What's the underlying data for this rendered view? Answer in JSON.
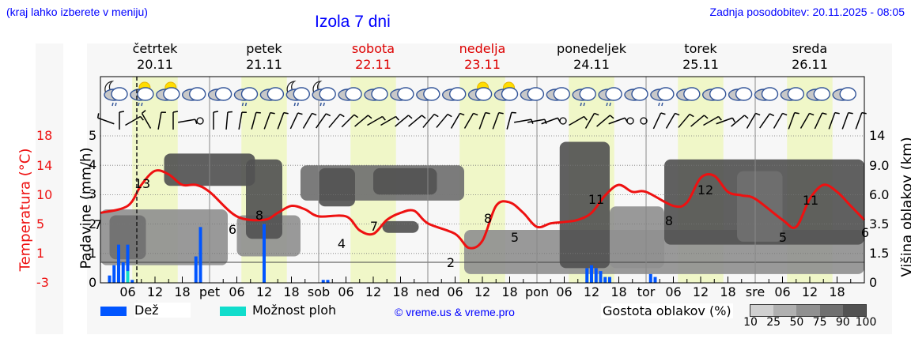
{
  "header": {
    "hint": "(kraj lahko izberete v meniju)",
    "title": "Izola 7 dni",
    "updated": "Zadnja posodobitev: 20.11.2025 - 08:05"
  },
  "days": [
    {
      "name": "četrtek",
      "date": "20.11",
      "weekend": false
    },
    {
      "name": "petek",
      "date": "21.11",
      "weekend": false
    },
    {
      "name": "sobota",
      "date": "22.11",
      "weekend": true
    },
    {
      "name": "nedelja",
      "date": "23.11",
      "weekend": true
    },
    {
      "name": "ponedeljek",
      "date": "24.11",
      "weekend": false
    },
    {
      "name": "torek",
      "date": "25.11",
      "weekend": false
    },
    {
      "name": "sreda",
      "date": "26.11",
      "weekend": false
    }
  ],
  "axes": {
    "temp_label": "Temperatura (°C)",
    "precip_label": "Padavine (mm/h)",
    "cloud_label": "Višina oblakov (km)",
    "temp_ticks": [
      "18",
      "14",
      "10",
      "5",
      "1",
      "-3"
    ],
    "precip_ticks": [
      "5",
      "4",
      "3",
      "2",
      "1",
      "0"
    ],
    "cloud_ticks": [
      "14",
      "9.0",
      "6.0",
      "3.5",
      "1.5",
      "0"
    ],
    "x_ticks": [
      "06",
      "12",
      "18",
      "pet",
      "06",
      "12",
      "18",
      "sob",
      "06",
      "12",
      "18",
      "ned",
      "06",
      "12",
      "18",
      "pon",
      "06",
      "12",
      "18",
      "tor",
      "06",
      "12",
      "18",
      "sre",
      "06",
      "12",
      "18"
    ]
  },
  "legend": {
    "rain": "Dež",
    "showers": "Možnost ploh",
    "copyright": "© vreme.us & vreme.pro",
    "density_label": "Gostota oblakov (%)",
    "density_ticks": [
      "10",
      "25",
      "50",
      "75",
      "90",
      "100"
    ],
    "density_colors": [
      "#d0d0d0",
      "#b0b0b0",
      "#909090",
      "#707070",
      "#525252"
    ]
  },
  "colors": {
    "temp_line": "#ee1111",
    "rain": "#0055ff",
    "showers": "#11ddcc",
    "daylight": "#f0f7c8",
    "weekend": "#dd0000",
    "link": "#0000ff"
  },
  "chart_data": {
    "type": "line",
    "title": "Izola 7 dni",
    "xlabel": "",
    "ylabel": "Padavine (mm/h)",
    "ylim": [
      0,
      5
    ],
    "temp_ylim": [
      -3,
      18
    ],
    "current_time_hour": 8,
    "temperature": {
      "name": "Temperatura (°C)",
      "hours": [
        0,
        6,
        9,
        12,
        15,
        18,
        21,
        24,
        30,
        36,
        39,
        42,
        45,
        48,
        54,
        57,
        60,
        63,
        66,
        69,
        72,
        78,
        81,
        84,
        87,
        90,
        93,
        96,
        99,
        102,
        105,
        108,
        111,
        114,
        117,
        120,
        126,
        129,
        132,
        135,
        138,
        141,
        144,
        150,
        153,
        156,
        159,
        162,
        165,
        168
      ],
      "values": [
        7,
        8,
        11,
        13,
        12.5,
        11,
        11,
        10,
        6.5,
        6,
        7,
        8,
        7.5,
        6.5,
        6.5,
        4.5,
        4,
        6,
        7,
        7.3,
        5.5,
        4,
        2,
        3,
        8,
        8.5,
        7,
        5,
        5.5,
        5.7,
        6,
        7,
        9.5,
        11,
        10,
        10,
        8,
        8.5,
        12,
        12.3,
        10,
        9.5,
        9,
        6,
        5,
        9,
        11,
        10,
        8,
        6
      ]
    },
    "temp_labels": [
      {
        "hour": 0,
        "value": "7"
      },
      {
        "hour": 10,
        "value": "13"
      },
      {
        "hour": 28,
        "value": "6"
      },
      {
        "hour": 35,
        "value": "8"
      },
      {
        "hour": 53,
        "value": "4"
      },
      {
        "hour": 60,
        "value": "7"
      },
      {
        "hour": 77,
        "value": "2"
      },
      {
        "hour": 84,
        "value": "8"
      },
      {
        "hour": 91,
        "value": "5"
      },
      {
        "hour": 108,
        "value": "11"
      },
      {
        "hour": 125,
        "value": "8"
      },
      {
        "hour": 132,
        "value": "12"
      },
      {
        "hour": 151,
        "value": "5"
      },
      {
        "hour": 156,
        "value": "11"
      },
      {
        "hour": 168,
        "value": "6"
      }
    ],
    "rain_bars": [
      {
        "hour": 2,
        "mm": 0.25,
        "shower": 0
      },
      {
        "hour": 3,
        "mm": 0.6,
        "shower": 0
      },
      {
        "hour": 4,
        "mm": 1.3,
        "shower": 0
      },
      {
        "hour": 5,
        "mm": 0.7,
        "shower": 0
      },
      {
        "hour": 6,
        "mm": 1.3,
        "shower": 0.4
      },
      {
        "hour": 7,
        "mm": 0.1,
        "shower": 0
      },
      {
        "hour": 21,
        "mm": 0.9,
        "shower": 0
      },
      {
        "hour": 22,
        "mm": 1.9,
        "shower": 0
      },
      {
        "hour": 36,
        "mm": 2.0,
        "shower": 0
      },
      {
        "hour": 49,
        "mm": 0.1,
        "shower": 0
      },
      {
        "hour": 50,
        "mm": 0.1,
        "shower": 0
      },
      {
        "hour": 107,
        "mm": 0.5,
        "shower": 0
      },
      {
        "hour": 108,
        "mm": 0.6,
        "shower": 0
      },
      {
        "hour": 109,
        "mm": 0.5,
        "shower": 0
      },
      {
        "hour": 110,
        "mm": 0.4,
        "shower": 0
      },
      {
        "hour": 111,
        "mm": 0.2,
        "shower": 0
      },
      {
        "hour": 112,
        "mm": 0.2,
        "shower": 0
      },
      {
        "hour": 121,
        "mm": 0.3,
        "shower": 0
      },
      {
        "hour": 122,
        "mm": 0.2,
        "shower": 0
      }
    ],
    "cloud_blocks": [
      {
        "h0": 0,
        "h1": 28,
        "y0": 0.6,
        "y1": 2.5,
        "level": 2
      },
      {
        "h0": 2,
        "h1": 10,
        "y0": 0.8,
        "y1": 2.3,
        "level": 3
      },
      {
        "h0": 14,
        "h1": 34,
        "y0": 3.3,
        "y1": 4.4,
        "level": 4
      },
      {
        "h0": 30,
        "h1": 44,
        "y0": 0.9,
        "y1": 2.3,
        "level": 2
      },
      {
        "h0": 32,
        "h1": 40,
        "y0": 1.5,
        "y1": 4.2,
        "level": 4
      },
      {
        "h0": 44,
        "h1": 80,
        "y0": 2.8,
        "y1": 4.0,
        "level": 3
      },
      {
        "h0": 48,
        "h1": 56,
        "y0": 2.6,
        "y1": 3.9,
        "level": 4
      },
      {
        "h0": 60,
        "h1": 74,
        "y0": 3.0,
        "y1": 3.9,
        "level": 4
      },
      {
        "h0": 62,
        "h1": 70,
        "y0": 1.7,
        "y1": 2.1,
        "level": 4
      },
      {
        "h0": 80,
        "h1": 168,
        "y0": 0.3,
        "y1": 1.8,
        "level": 2
      },
      {
        "h0": 101,
        "h1": 112,
        "y0": 0.5,
        "y1": 4.8,
        "level": 4
      },
      {
        "h0": 112,
        "h1": 124,
        "y0": 0.5,
        "y1": 2.6,
        "level": 2
      },
      {
        "h0": 124,
        "h1": 168,
        "y0": 1.3,
        "y1": 4.2,
        "level": 4
      },
      {
        "h0": 140,
        "h1": 150,
        "y0": 1.4,
        "y1": 3.8,
        "level": 3
      }
    ],
    "daylight_hours": [
      [
        7,
        17
      ],
      [
        31,
        41
      ],
      [
        55,
        65
      ],
      [
        79,
        89
      ],
      [
        103,
        113
      ],
      [
        127,
        137
      ],
      [
        151,
        161
      ]
    ]
  }
}
